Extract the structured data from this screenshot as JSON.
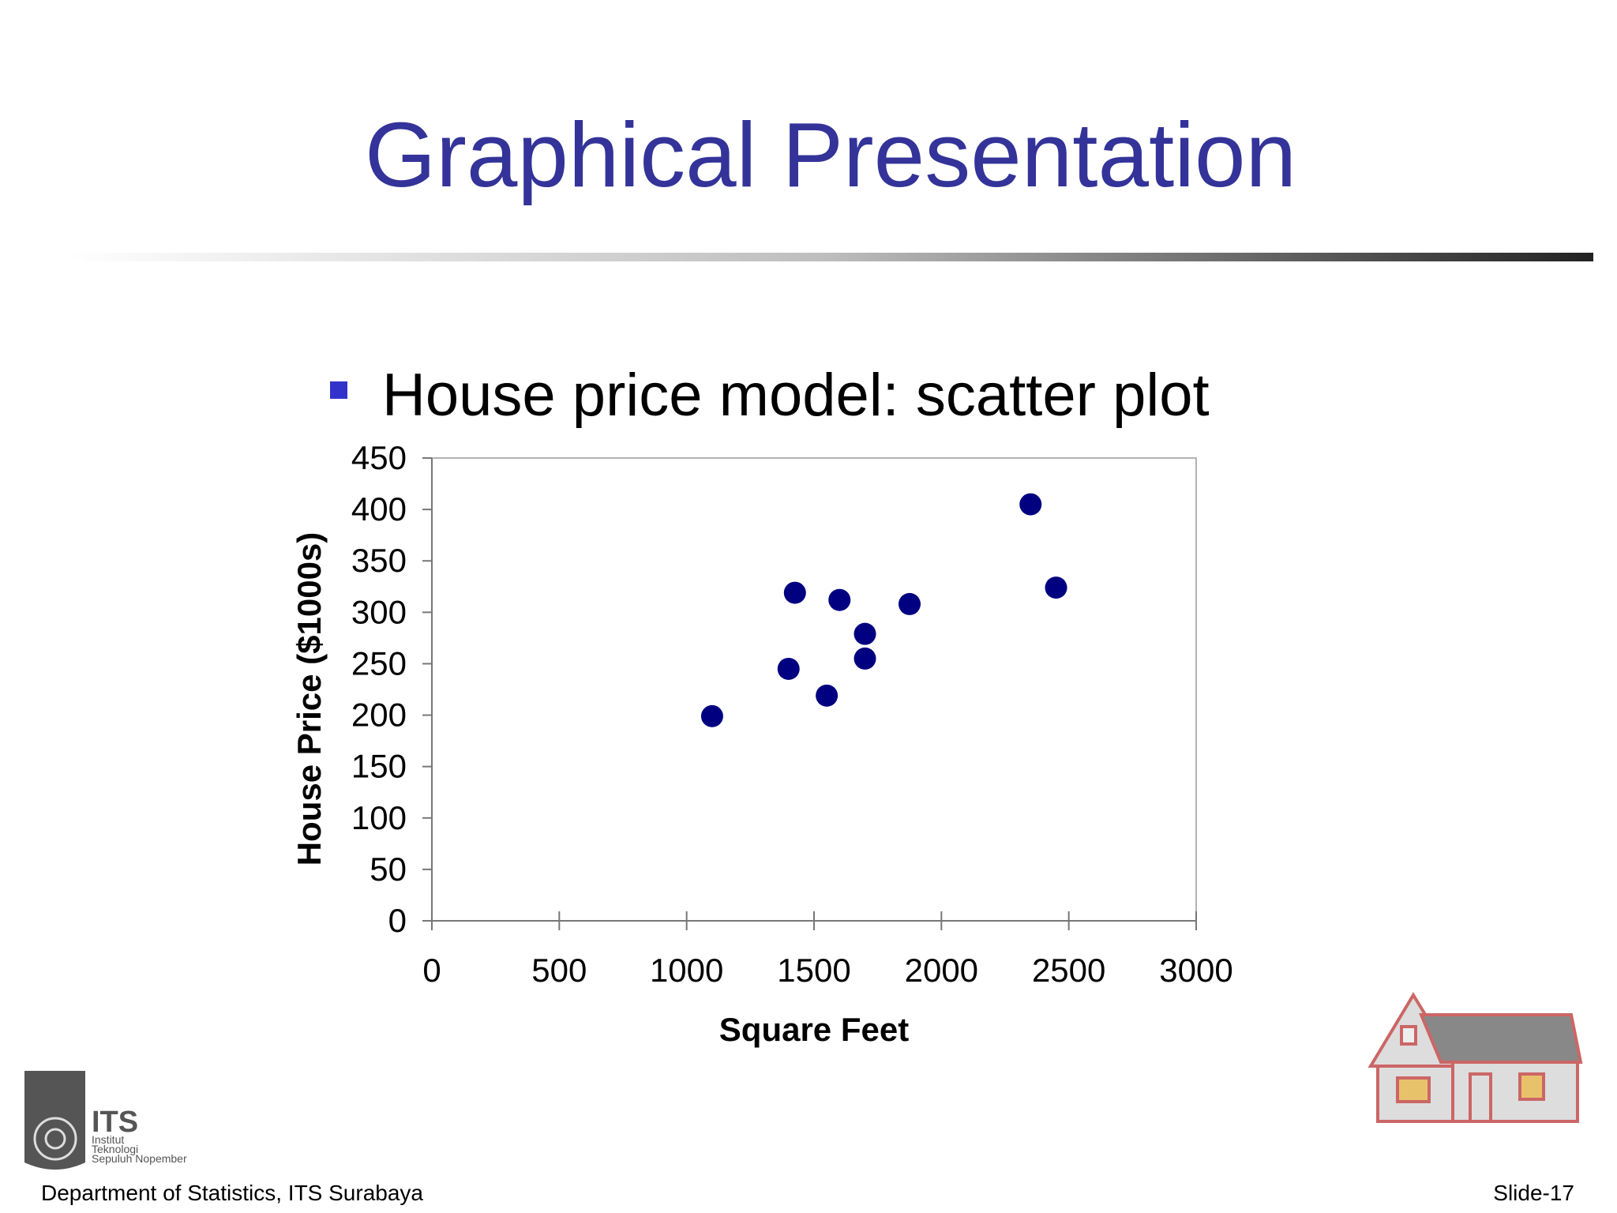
{
  "slide": {
    "title": "Graphical Presentation",
    "bullet": "House price model:  scatter plot",
    "logo": {
      "name": "ITS",
      "lines": [
        "Institut",
        "Teknologi",
        "Sepuluh Nopember"
      ]
    },
    "footer": "Department of  Statistics, ITS Surabaya",
    "slide_number": "Slide-17"
  },
  "chart_data": {
    "type": "scatter",
    "xlabel": "Square Feet",
    "ylabel": "House Price ($1000s)",
    "x": [
      1400,
      1600,
      1700,
      1875,
      1100,
      1550,
      2350,
      2450,
      1425,
      1700
    ],
    "series": [
      {
        "name": "House price",
        "color": "#000080",
        "values": [
          245,
          312,
          279,
          308,
          199,
          219,
          405,
          324,
          319,
          255
        ]
      }
    ],
    "xlim": [
      0,
      3000
    ],
    "xticks": [
      0,
      500,
      1000,
      1500,
      2000,
      2500,
      3000
    ],
    "ylim": [
      0,
      450
    ],
    "yticks": [
      0,
      50,
      100,
      150,
      200,
      250,
      300,
      350,
      400,
      450
    ],
    "grid": false
  }
}
